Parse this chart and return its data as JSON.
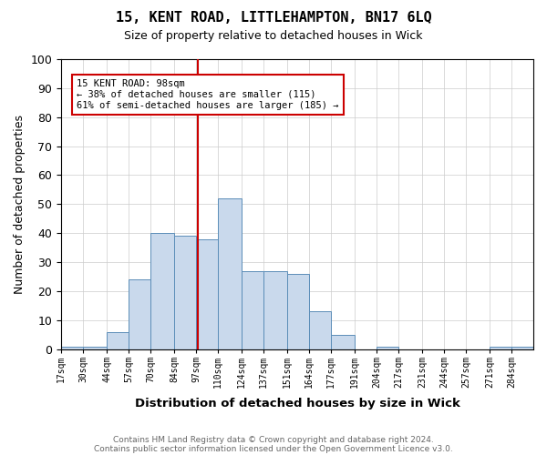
{
  "title": "15, KENT ROAD, LITTLEHAMPTON, BN17 6LQ",
  "subtitle": "Size of property relative to detached houses in Wick",
  "xlabel": "Distribution of detached houses by size in Wick",
  "ylabel": "Number of detached properties",
  "footnote1": "Contains HM Land Registry data © Crown copyright and database right 2024.",
  "footnote2": "Contains public sector information licensed under the Open Government Licence v3.0.",
  "annotation_line1": "15 KENT ROAD: 98sqm",
  "annotation_line2": "← 38% of detached houses are smaller (115)",
  "annotation_line3": "61% of semi-detached houses are larger (185) →",
  "property_size": 98,
  "bar_edges": [
    17,
    30,
    44,
    57,
    70,
    84,
    97,
    110,
    124,
    137,
    151,
    164,
    177,
    191,
    204,
    217,
    231,
    244,
    257,
    271,
    284,
    297
  ],
  "bar_heights": [
    1,
    1,
    6,
    24,
    40,
    39,
    38,
    52,
    27,
    27,
    26,
    13,
    5,
    0,
    1,
    0,
    0,
    0,
    0,
    1,
    1
  ],
  "bar_color": "#c9d9ec",
  "bar_edge_color": "#5b8db8",
  "vline_color": "#cc0000",
  "vline_x": 98,
  "annotation_box_color": "#cc0000",
  "background_color": "#ffffff",
  "grid_color": "#cccccc",
  "ylim": [
    0,
    100
  ],
  "xlim": [
    17,
    297
  ],
  "xtick_labels": [
    "17sqm",
    "30sqm",
    "44sqm",
    "57sqm",
    "70sqm",
    "84sqm",
    "97sqm",
    "110sqm",
    "124sqm",
    "137sqm",
    "151sqm",
    "164sqm",
    "177sqm",
    "191sqm",
    "204sqm",
    "217sqm",
    "231sqm",
    "244sqm",
    "257sqm",
    "271sqm",
    "284sqm"
  ]
}
